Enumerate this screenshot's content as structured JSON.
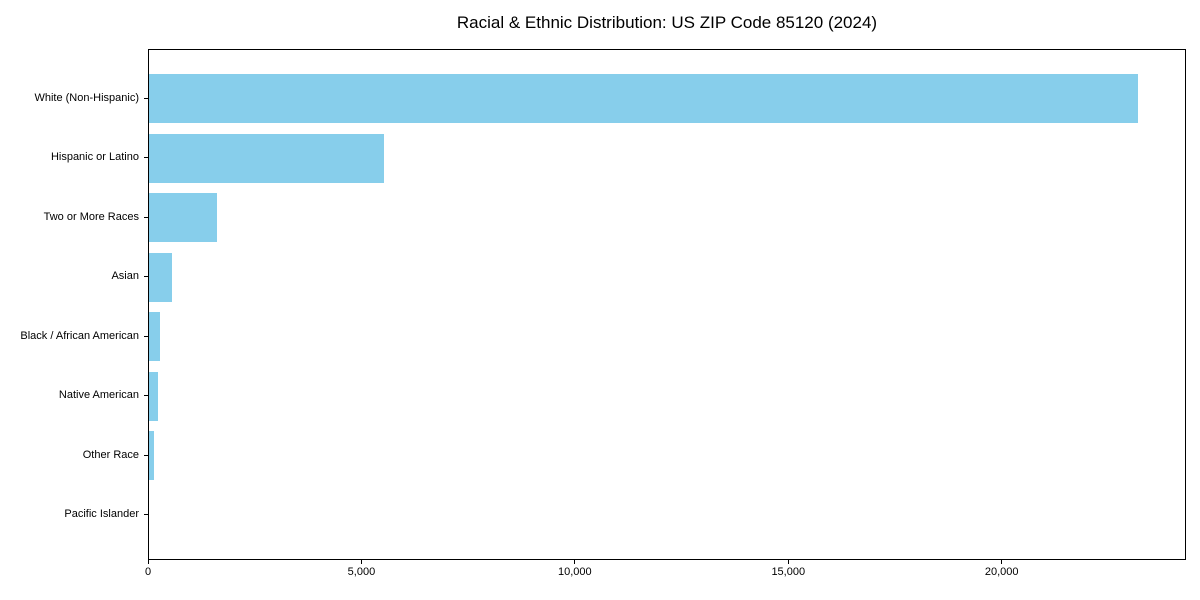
{
  "chart_data": {
    "type": "bar",
    "orientation": "horizontal",
    "title": "Racial & Ethnic Distribution: US ZIP Code 85120 (2024)",
    "categories": [
      "White (Non-Hispanic)",
      "Hispanic or Latino",
      "Two or More Races",
      "Asian",
      "Black / African American",
      "Native American",
      "Other Race",
      "Pacific Islander"
    ],
    "values": [
      23160,
      5500,
      1590,
      550,
      250,
      220,
      125,
      0
    ],
    "xlabel": "",
    "ylabel": "",
    "xlim": [
      0,
      24318
    ],
    "x_ticks": [
      0,
      5000,
      10000,
      15000,
      20000
    ],
    "x_tick_labels": [
      "0",
      "5,000",
      "10,000",
      "15,000",
      "20,000"
    ],
    "bar_color": "#87CEEB",
    "axis_color": "#000000",
    "background_color": "#ffffff",
    "grid": false,
    "legend": null
  }
}
